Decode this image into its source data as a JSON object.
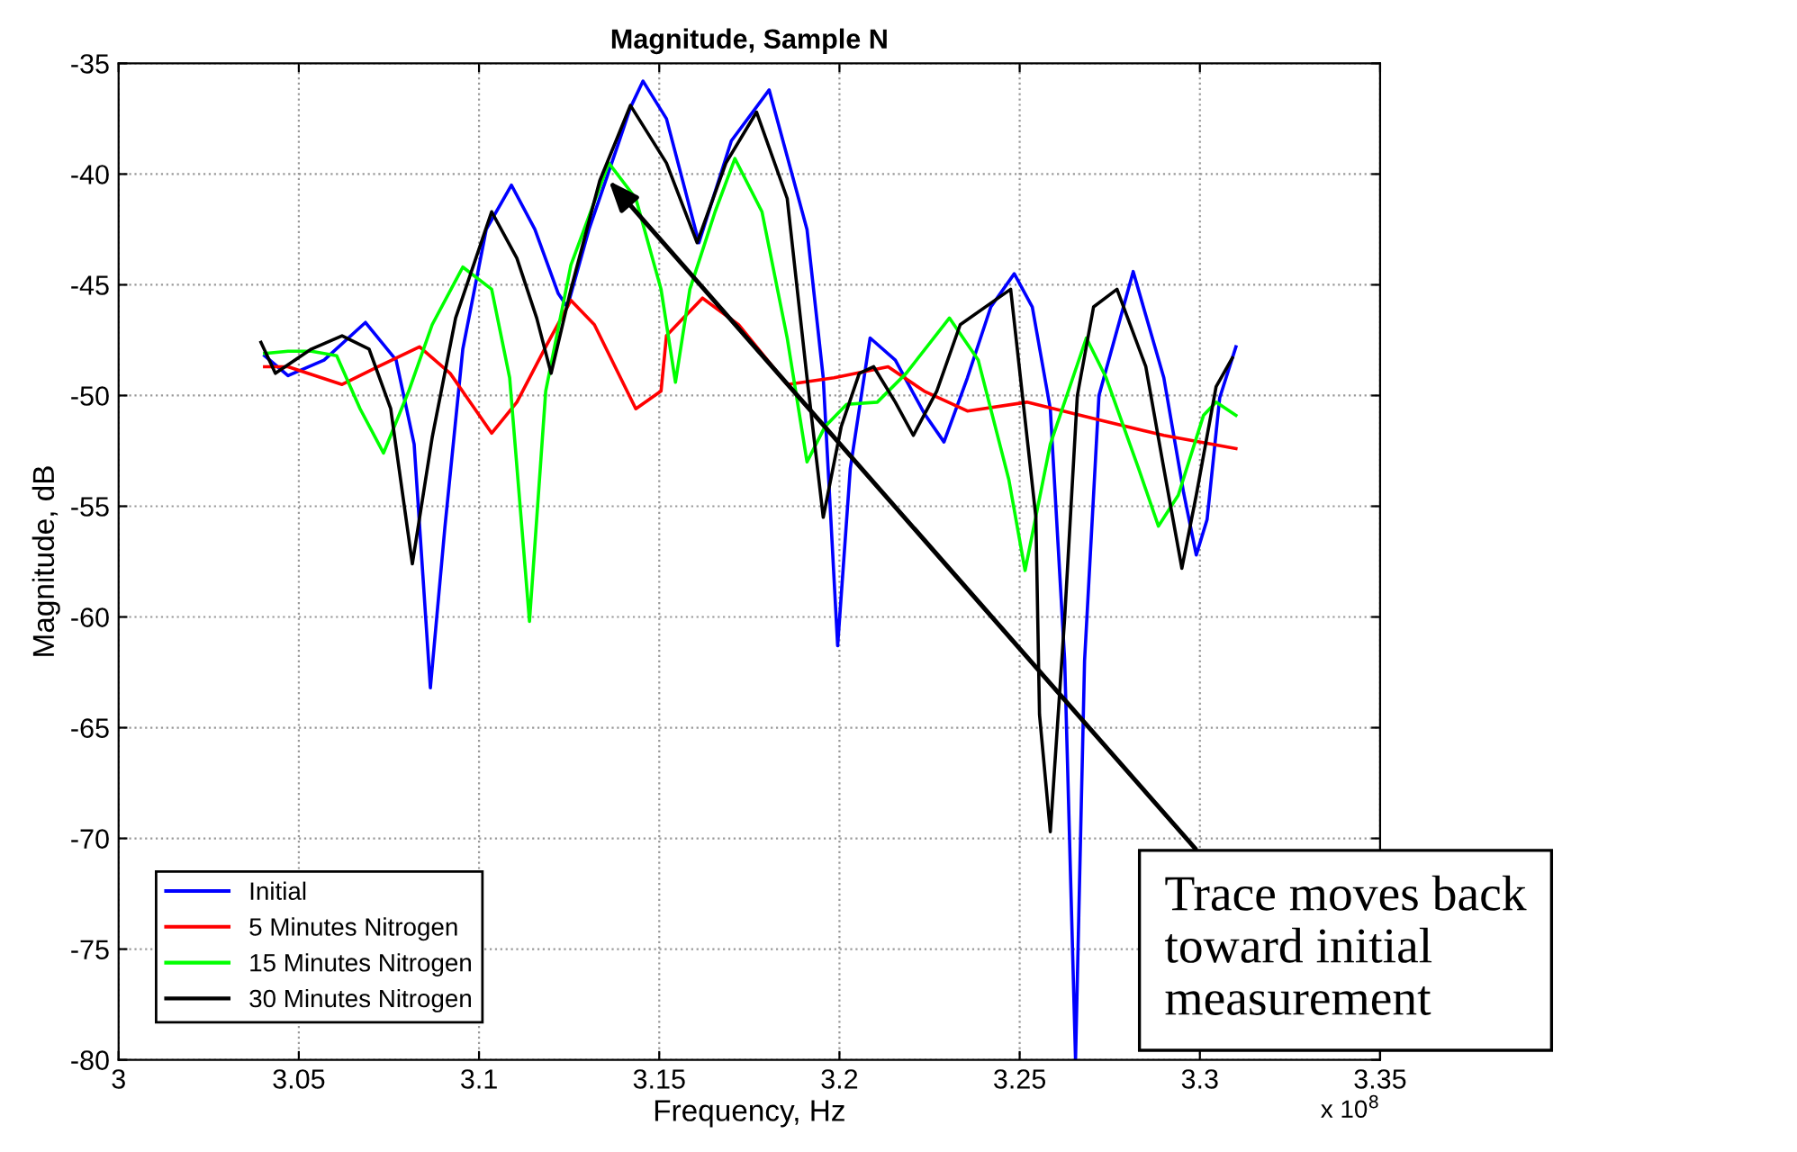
{
  "chart_data": {
    "type": "line",
    "title": "Magnitude, Sample N",
    "xlabel": "Frequency, Hz",
    "ylabel": "Magnitude, dB",
    "xlim": [
      3,
      3.35
    ],
    "xticks": [
      3,
      3.05,
      3.1,
      3.15,
      3.2,
      3.25,
      3.3,
      3.35
    ],
    "ylim": [
      -80,
      -35
    ],
    "yticks": [
      -80,
      -75,
      -70,
      -65,
      -60,
      -55,
      -50,
      -45,
      -40,
      -35
    ],
    "grid": true,
    "legend": "bottom left",
    "line_style": "solid",
    "marker": "none",
    "annotations": [
      "x 10$^{8}$",
      {
        "text": "Trace moves back\ntoward initial\nmeasurement",
        "x": 3.136,
        "y": -40.3
      }
    ],
    "series": [
      {
        "name": "Initial",
        "color": "#0000ff",
        "x": [
          3.0405,
          3.047,
          3.057,
          3.0685,
          3.077,
          3.082,
          3.0865,
          3.0905,
          3.0955,
          3.102,
          3.109,
          3.1155,
          3.122,
          3.1245,
          3.1305,
          3.1385,
          3.142,
          3.1455,
          3.152,
          3.161,
          3.17,
          3.1805,
          3.191,
          3.1955,
          3.1995,
          3.203,
          3.2085,
          3.2155,
          3.2235,
          3.229,
          3.2355,
          3.242,
          3.2485,
          3.2535,
          3.2585,
          3.2625,
          3.2655,
          3.268,
          3.272,
          3.2815,
          3.29,
          3.2955,
          3.299,
          3.302,
          3.3055,
          3.31
        ],
        "values": [
          -48.2,
          -49.1,
          -48.4,
          -46.7,
          -48.4,
          -52.2,
          -63.2,
          -56,
          -47.9,
          -42.5,
          -40.5,
          -42.5,
          -45.4,
          -46,
          -42.5,
          -38.7,
          -37,
          -35.8,
          -37.5,
          -43.1,
          -38.5,
          -36.2,
          -42.5,
          -49.2,
          -61.3,
          -53.3,
          -47.4,
          -48.4,
          -50.8,
          -52.1,
          -49.2,
          -46,
          -44.5,
          -46,
          -50.6,
          -62,
          -80,
          -62,
          -50,
          -44.4,
          -49.2,
          -54.4,
          -57.2,
          -55.6,
          -50.1,
          -47.8
        ]
      },
      {
        "name": "5 Minutes Nitrogen",
        "color": "#ff0000",
        "x": [
          3.0405,
          3.047,
          3.062,
          3.072,
          3.0835,
          3.092,
          3.1035,
          3.1105,
          3.1185,
          3.1255,
          3.132,
          3.1435,
          3.1505,
          3.152,
          3.162,
          3.172,
          3.1855,
          3.1985,
          3.2135,
          3.2235,
          3.2355,
          3.252,
          3.272,
          3.29,
          3.31
        ],
        "values": [
          -48.7,
          -48.7,
          -49.5,
          -48.7,
          -47.8,
          -49,
          -51.7,
          -50.3,
          -47.8,
          -45.7,
          -46.8,
          -50.6,
          -49.8,
          -47.3,
          -45.6,
          -46.8,
          -49.5,
          -49.2,
          -48.7,
          -49.8,
          -50.7,
          -50.3,
          -51.1,
          -51.8,
          -52.4
        ]
      },
      {
        "name": "15 Minutes Nitrogen",
        "color": "#00ff00",
        "x": [
          3.0405,
          3.047,
          3.0535,
          3.0605,
          3.067,
          3.0735,
          3.0805,
          3.087,
          3.0955,
          3.1035,
          3.1085,
          3.114,
          3.1185,
          3.1255,
          3.136,
          3.1435,
          3.1505,
          3.1545,
          3.1585,
          3.1655,
          3.171,
          3.1785,
          3.1855,
          3.191,
          3.196,
          3.202,
          3.2105,
          3.2185,
          3.2305,
          3.2385,
          3.247,
          3.2515,
          3.2585,
          3.2685,
          3.274,
          3.283,
          3.2885,
          3.294,
          3.301,
          3.3045,
          3.31
        ],
        "values": [
          -48.1,
          -48,
          -48,
          -48.2,
          -50.6,
          -52.6,
          -49.8,
          -46.8,
          -44.2,
          -45.2,
          -49.2,
          -60.2,
          -49.8,
          -44.1,
          -39.5,
          -41.1,
          -45.2,
          -49.4,
          -45.2,
          -41.7,
          -39.3,
          -41.7,
          -47.4,
          -53,
          -51.4,
          -50.4,
          -50.3,
          -49,
          -46.5,
          -48.4,
          -53.8,
          -57.9,
          -52.2,
          -47.4,
          -49.2,
          -53.3,
          -55.9,
          -54.5,
          -50.9,
          -50.3,
          -50.9
        ]
      },
      {
        "name": "30 Minutes Nitrogen",
        "color": "#000000",
        "x": [
          3.0395,
          3.0435,
          3.0535,
          3.062,
          3.0695,
          3.0755,
          3.0815,
          3.087,
          3.0935,
          3.1035,
          3.1105,
          3.116,
          3.12,
          3.1255,
          3.1335,
          3.142,
          3.152,
          3.1605,
          3.1685,
          3.177,
          3.1855,
          3.191,
          3.1955,
          3.2005,
          3.2055,
          3.2095,
          3.2155,
          3.2205,
          3.227,
          3.2335,
          3.2475,
          3.2545,
          3.2555,
          3.2585,
          3.2625,
          3.266,
          3.2705,
          3.277,
          3.285,
          3.29,
          3.295,
          3.299,
          3.3045,
          3.309
        ],
        "values": [
          -47.6,
          -49,
          -47.9,
          -47.3,
          -47.9,
          -50.6,
          -57.6,
          -51.9,
          -46.5,
          -41.7,
          -43.8,
          -46.5,
          -49,
          -45.2,
          -40.3,
          -36.9,
          -39.5,
          -43.1,
          -39.5,
          -37.2,
          -41.1,
          -49.2,
          -55.5,
          -51.4,
          -49,
          -48.7,
          -50.3,
          -51.8,
          -49.8,
          -46.8,
          -45.2,
          -55.5,
          -64.4,
          -69.7,
          -60,
          -50,
          -46,
          -45.2,
          -48.7,
          -53.3,
          -57.8,
          -54.5,
          -49.6,
          -48.3
        ]
      }
    ]
  }
}
